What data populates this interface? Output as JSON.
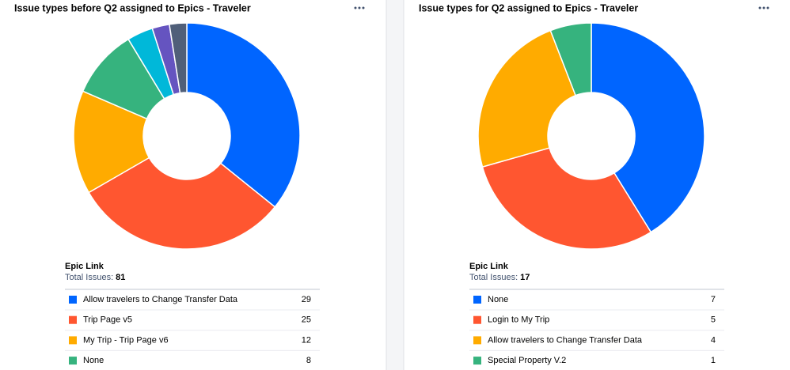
{
  "chart_data": [
    {
      "type": "donut",
      "title": "Issue types before Q2 assigned to Epics - Traveler",
      "legend_title": "Epic Link",
      "total_label": "Total Issues:",
      "total": 81,
      "categories": [
        "Allow travelers to Change Transfer Data",
        "Trip Page v5",
        "My Trip - Trip Page v6",
        "None",
        null,
        null,
        null
      ],
      "values": [
        29,
        25,
        12,
        8,
        3,
        2,
        2
      ],
      "colors": [
        "#0065ff",
        "#ff5630",
        "#ffab00",
        "#36b37e",
        "#00b8d9",
        "#6554c0",
        "#505f79"
      ]
    },
    {
      "type": "donut",
      "title": "Issue types for Q2 assigned to Epics - Traveler",
      "legend_title": "Epic Link",
      "total_label": "Total Issues:",
      "total": 17,
      "categories": [
        "None",
        "Login to My Trip",
        "Allow travelers to Change Transfer Data",
        "Special Property V.2"
      ],
      "values": [
        7,
        5,
        4,
        1
      ],
      "colors": [
        "#0065ff",
        "#ff5630",
        "#ffab00",
        "#36b37e"
      ]
    }
  ]
}
